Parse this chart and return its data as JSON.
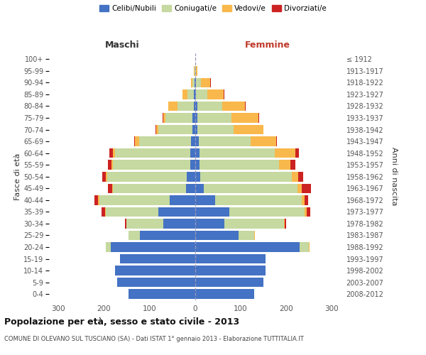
{
  "age_groups": [
    "0-4",
    "5-9",
    "10-14",
    "15-19",
    "20-24",
    "25-29",
    "30-34",
    "35-39",
    "40-44",
    "45-49",
    "50-54",
    "55-59",
    "60-64",
    "65-69",
    "70-74",
    "75-79",
    "80-84",
    "85-89",
    "90-94",
    "95-99",
    "100+"
  ],
  "birth_years": [
    "2008-2012",
    "2003-2007",
    "1998-2002",
    "1993-1997",
    "1988-1992",
    "1983-1987",
    "1978-1982",
    "1973-1977",
    "1968-1972",
    "1963-1967",
    "1958-1962",
    "1953-1957",
    "1948-1952",
    "1943-1947",
    "1938-1942",
    "1933-1937",
    "1928-1932",
    "1923-1927",
    "1918-1922",
    "1913-1917",
    "≤ 1912"
  ],
  "males_celibe": [
    145,
    170,
    175,
    165,
    185,
    120,
    70,
    80,
    55,
    20,
    18,
    10,
    10,
    8,
    5,
    5,
    3,
    2,
    1,
    0,
    0
  ],
  "males_coniugato": [
    0,
    0,
    0,
    0,
    10,
    25,
    80,
    115,
    155,
    160,
    175,
    170,
    165,
    115,
    75,
    60,
    35,
    15,
    4,
    1,
    0
  ],
  "males_vedovo": [
    0,
    0,
    0,
    0,
    0,
    0,
    1,
    2,
    2,
    2,
    2,
    3,
    5,
    8,
    5,
    5,
    20,
    10,
    3,
    1,
    0
  ],
  "males_divorziato": [
    0,
    0,
    0,
    0,
    1,
    1,
    3,
    8,
    8,
    8,
    8,
    8,
    8,
    2,
    1,
    1,
    1,
    1,
    1,
    0,
    0
  ],
  "females_nubile": [
    130,
    150,
    155,
    155,
    230,
    95,
    65,
    75,
    45,
    20,
    12,
    10,
    10,
    8,
    5,
    5,
    5,
    3,
    2,
    1,
    0
  ],
  "females_coniugata": [
    0,
    0,
    0,
    0,
    20,
    35,
    130,
    165,
    190,
    205,
    200,
    175,
    165,
    115,
    80,
    75,
    55,
    25,
    12,
    2,
    0
  ],
  "females_vedova": [
    0,
    0,
    0,
    0,
    1,
    1,
    2,
    5,
    5,
    10,
    15,
    25,
    45,
    55,
    65,
    60,
    50,
    35,
    20,
    2,
    0
  ],
  "females_divorziata": [
    0,
    0,
    0,
    0,
    1,
    1,
    3,
    8,
    8,
    20,
    10,
    10,
    8,
    2,
    1,
    1,
    1,
    1,
    1,
    0,
    0
  ],
  "color_celibe": "#4472C4",
  "color_coniugato": "#C5D9A0",
  "color_vedovo": "#F9B84B",
  "color_divorziato": "#CC2222",
  "xlim": 320,
  "title": "Popolazione per età, sesso e stato civile - 2013",
  "subtitle": "COMUNE DI OLEVANO SUL TUSCIANO (SA) - Dati ISTAT 1° gennaio 2013 - Elaborazione TUTTITALIA.IT",
  "ylabel_left": "Fasce di età",
  "ylabel_right": "Anni di nascita",
  "label_maschi": "Maschi",
  "label_femmine": "Femmine",
  "legend_labels": [
    "Celibi/Nubili",
    "Coniugati/e",
    "Vedovi/e",
    "Divorziati/e"
  ],
  "bg_color": "#ffffff"
}
